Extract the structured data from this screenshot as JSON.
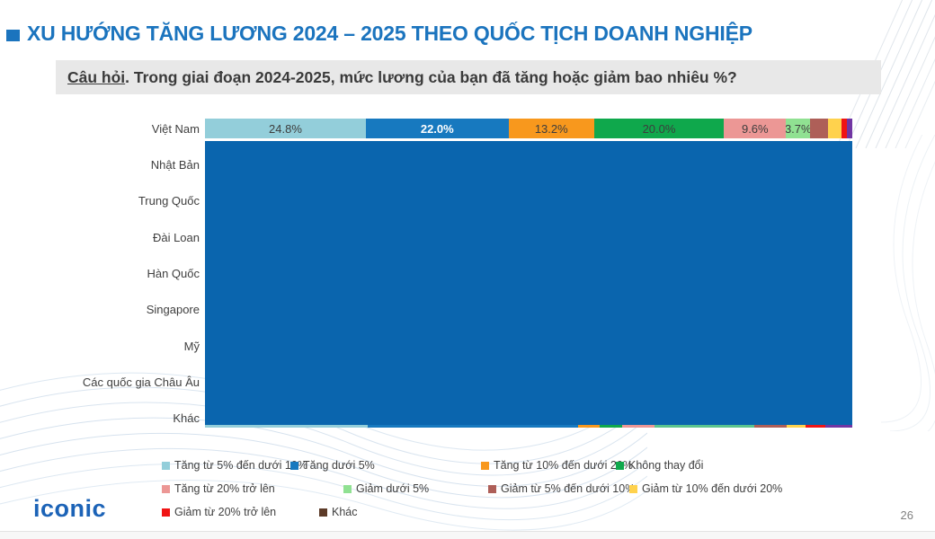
{
  "slide": {
    "title": "XU HƯỚNG TĂNG LƯƠNG 2024 – 2025 THEO QUỐC TỊCH DOANH NGHIỆP",
    "question_prefix": "Câu hỏi",
    "question_rest": ". Trong giai đoạn 2024-2025, mức lương của bạn đã tăng hoặc giảm bao nhiêu %?",
    "logo_text": "iconic",
    "page_number": "26",
    "accent_blue": "#1B74BE"
  },
  "chart_data": {
    "type": "bar",
    "orientation": "horizontal-stacked",
    "categories": [
      "Việt Nam",
      "Nhật Bản",
      "Trung Quốc",
      "Đài Loan",
      "Hàn Quốc",
      "Singapore",
      "Mỹ",
      "Các quốc gia Châu Âu",
      "Khác"
    ],
    "palette": [
      "#93CEDA",
      "#1779BF",
      "#F8981D",
      "#0FA84C",
      "#EC9795",
      "#90E192",
      "#AE5F58",
      "#FFD24D",
      "#F01414",
      "#7136A3"
    ],
    "viet_nam_segments": [
      {
        "label": "24.8%",
        "value": 24.8,
        "label_color": "dark"
      },
      {
        "label": "22.0%",
        "value": 22.0,
        "label_color": "white"
      },
      {
        "label": "13.2%",
        "value": 13.2,
        "label_color": "dark"
      },
      {
        "label": "20.0%",
        "value": 20.0,
        "label_color": "dark"
      },
      {
        "label": "9.6%",
        "value": 9.6,
        "label_color": "dark"
      },
      {
        "label": "3.7%",
        "value": 3.7,
        "label_color": "dark"
      },
      {
        "label": "",
        "value": 2.8,
        "label_color": "dark"
      },
      {
        "label": "",
        "value": 2.1,
        "label_color": "dark"
      },
      {
        "label": "",
        "value": 0.75,
        "label_color": "dark"
      },
      {
        "label": "",
        "value": 0.85,
        "label_color": "dark"
      }
    ],
    "overlay_block": {
      "color": "#0A65AE",
      "description": "solid blue block covering rows below Việt Nam"
    },
    "khac_visible_strip": {
      "colors": [
        "#93CEDA",
        "#1779BF",
        "#F8981D",
        "#0FA84C",
        "#EC9795",
        "#5BC48E",
        "#AE5F58",
        "#FFD24D",
        "#F01414",
        "#7136A3"
      ],
      "widths_pct": [
        25.2,
        32.4,
        3.4,
        3.4,
        5.1,
        15.4,
        4.9,
        3.0,
        3.0,
        4.2
      ]
    }
  },
  "legend": {
    "items": [
      {
        "label": "Tăng từ 5% đến dưới 10%",
        "color": "#93CEDA"
      },
      {
        "label": "Tăng dưới 5%",
        "color": "#1779BF"
      },
      {
        "label": "Tăng từ 10% đến dưới 20%",
        "color": "#F8981D"
      },
      {
        "label": "Không thay đổi",
        "color": "#0FA84C"
      },
      {
        "label": "Tăng từ 20% trở lên",
        "color": "#EC9795"
      },
      {
        "label": "Giảm dưới 5%",
        "color": "#90E192"
      },
      {
        "label": "Giảm từ 5% đến dưới 10%",
        "color": "#AE5F58"
      },
      {
        "label": "Giảm từ 10% đến dưới 20%",
        "color": "#FFD24D"
      },
      {
        "label": "Giảm từ 20% trở lên",
        "color": "#F01414"
      },
      {
        "label": "Khác",
        "color": "#5C3B28"
      }
    ],
    "rows": [
      [
        0,
        1,
        2,
        3
      ],
      [
        4,
        5,
        6,
        7
      ],
      [
        8,
        9
      ]
    ]
  }
}
